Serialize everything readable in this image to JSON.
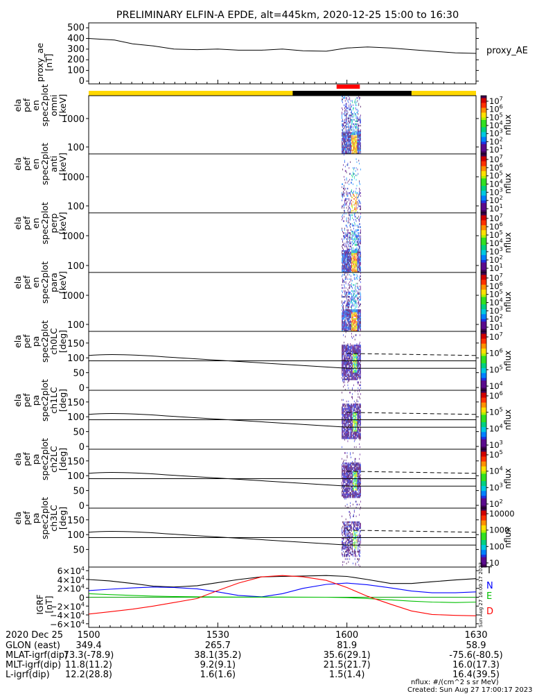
{
  "title": "PRELIMINARY ELFIN-A EPDE, alt=445km, 2020-12-25 15:00 to 16:30",
  "chart_data": [
    {
      "type": "line",
      "panel": "proxy_ae",
      "ylabel": [
        "proxy_ae",
        "[nT]"
      ],
      "yticks": [
        "500",
        "400",
        "300",
        "200",
        "100",
        "0"
      ],
      "yticks_values": [
        500,
        400,
        300,
        200,
        100,
        0
      ],
      "ylim": [
        0,
        520
      ],
      "legend": "proxy_AE",
      "series": [
        {
          "name": "proxy_AE",
          "x": [
            15.0,
            15.1,
            15.17,
            15.25,
            15.33,
            15.42,
            15.5,
            15.58,
            15.67,
            15.75,
            15.83,
            15.92,
            16.0,
            16.08,
            16.17,
            16.25,
            16.33,
            16.42,
            16.5
          ],
          "values": [
            400,
            385,
            350,
            330,
            300,
            295,
            300,
            290,
            290,
            300,
            285,
            280,
            310,
            320,
            310,
            295,
            280,
            265,
            260
          ]
        }
      ]
    },
    {
      "type": "heatmap",
      "panel": "spec2plot omni",
      "ylabel": [
        "ela",
        "pef",
        "en",
        "spec2plot",
        "omni",
        "[keV]"
      ],
      "yticks": [
        "1000",
        "100"
      ],
      "colorbar": {
        "label": "nflux",
        "ticks": [
          "10",
          "10",
          "10",
          "10",
          "10",
          "10",
          "10"
        ],
        "exponents": [
          "7",
          "6",
          "5",
          "4",
          "3",
          "2",
          "1"
        ]
      },
      "time_range": [
        "15:58",
        "16:07"
      ]
    },
    {
      "type": "heatmap",
      "panel": "spec2plot anti",
      "ylabel": [
        "ela",
        "pef",
        "en",
        "spec2plot",
        "anti",
        "[keV]"
      ],
      "yticks": [
        "1000",
        "100"
      ],
      "colorbar": {
        "label": "nflux",
        "ticks": [
          "10",
          "10",
          "10",
          "10",
          "10",
          "10",
          "10"
        ],
        "exponents": [
          "7",
          "6",
          "5",
          "4",
          "3",
          "2",
          "1"
        ]
      },
      "time_range": [
        "15:58",
        "16:07"
      ]
    },
    {
      "type": "heatmap",
      "panel": "spec2plot perp",
      "ylabel": [
        "ela",
        "pef",
        "en",
        "spec2plot",
        "perp",
        "[keV]"
      ],
      "yticks": [
        "1000",
        "100"
      ],
      "colorbar": {
        "label": "nflux",
        "ticks": [
          "10",
          "10",
          "10",
          "10",
          "10",
          "10",
          "10"
        ],
        "exponents": [
          "7",
          "6",
          "5",
          "4",
          "3",
          "2",
          "1"
        ]
      },
      "time_range": [
        "15:58",
        "16:07"
      ]
    },
    {
      "type": "heatmap",
      "panel": "spec2plot para",
      "ylabel": [
        "ela",
        "pef",
        "en",
        "spec2plot",
        "para",
        "[keV]"
      ],
      "yticks": [
        "1000",
        "100"
      ],
      "colorbar": {
        "label": "nflux",
        "ticks": [
          "10",
          "10",
          "10",
          "10",
          "10",
          "10",
          "10"
        ],
        "exponents": [
          "7",
          "6",
          "5",
          "4",
          "3",
          "2",
          "1"
        ]
      },
      "time_range": [
        "15:58",
        "16:07"
      ]
    },
    {
      "type": "heatmap",
      "panel": "spec2plot ch0LC",
      "ylabel": [
        "ela",
        "pef",
        "pa",
        "spec2plot",
        "ch0LC",
        "[deg]"
      ],
      "yticks": [
        "150",
        "100",
        "50",
        "0"
      ],
      "yticks_values": [
        150,
        100,
        50,
        0
      ],
      "ylim": [
        0,
        180
      ],
      "colorbar": {
        "label": "nflux",
        "ticks": [
          "10",
          "10",
          "10",
          "10"
        ],
        "exponents": [
          "7",
          "6",
          "5",
          "4"
        ]
      },
      "lines": {
        "solid_90": 90,
        "lc_start": 115,
        "lc_end": 65,
        "alc_start": 108,
        "alc_end": 115
      },
      "time_range": [
        "15:58",
        "16:07"
      ]
    },
    {
      "type": "heatmap",
      "panel": "spec2plot ch1LC",
      "ylabel": [
        "ela",
        "pef",
        "pa",
        "spec2plot",
        "ch1LC",
        "[deg]"
      ],
      "yticks": [
        "150",
        "100",
        "50",
        "0"
      ],
      "yticks_values": [
        150,
        100,
        50,
        0
      ],
      "ylim": [
        0,
        180
      ],
      "colorbar": {
        "label": "nflux",
        "ticks": [
          "10",
          "10",
          "10",
          "10"
        ],
        "exponents": [
          "6",
          "5",
          "4",
          "3"
        ]
      },
      "lines": {
        "solid_90": 90,
        "lc_start": 115,
        "lc_end": 65,
        "alc_start": 108,
        "alc_end": 115
      },
      "time_range": [
        "15:58",
        "16:07"
      ]
    },
    {
      "type": "heatmap",
      "panel": "spec2plot ch2LC",
      "ylabel": [
        "ela",
        "pef",
        "pa",
        "spec2plot",
        "ch2LC",
        "[deg]"
      ],
      "yticks": [
        "150",
        "100",
        "50",
        "0"
      ],
      "yticks_values": [
        150,
        100,
        50,
        0
      ],
      "ylim": [
        0,
        180
      ],
      "colorbar": {
        "label": "nflux",
        "ticks": [
          "10",
          "10",
          "10",
          "10"
        ],
        "exponents": [
          "5",
          "4",
          "3",
          "2"
        ]
      },
      "lines": {
        "solid_90": 90,
        "lc_start": 115,
        "lc_end": 65,
        "alc_start": 108,
        "alc_end": 115
      },
      "time_range": [
        "15:58",
        "16:07"
      ]
    },
    {
      "type": "heatmap",
      "panel": "spec2plot ch3LC",
      "ylabel": [
        "ela",
        "pef",
        "pa",
        "spec2plot",
        "ch3LC",
        "[deg]"
      ],
      "yticks": [
        "150",
        "100",
        "50"
      ],
      "yticks_values": [
        150,
        100,
        50
      ],
      "ylim": [
        0,
        180
      ],
      "colorbar": {
        "label": "nflux",
        "ticks": [
          "10000",
          "1000",
          "100",
          "10"
        ]
      },
      "lines": {
        "solid_90": 90,
        "lc_start": 115,
        "lc_end": 65,
        "alc_start": 108,
        "alc_end": 115
      },
      "time_range": [
        "15:58",
        "16:07"
      ]
    },
    {
      "type": "line",
      "panel": "IGRF",
      "ylabel": [
        "IGRF",
        "[nT]"
      ],
      "yticks": [
        "6×10",
        "4×10",
        "2×10",
        "0",
        "−2×10",
        "−4×10",
        "−6×10"
      ],
      "ytick_exponent": "4",
      "yticks_values": [
        60000,
        40000,
        20000,
        0,
        -20000,
        -40000,
        -60000
      ],
      "ylim": [
        -65000,
        65000
      ],
      "legend": [
        "T",
        "N",
        "E",
        "D"
      ],
      "series": [
        {
          "name": "T",
          "color": "#000000",
          "x": [
            15.0,
            15.08,
            15.17,
            15.25,
            15.33,
            15.42,
            15.5,
            15.58,
            15.67,
            15.75,
            15.83,
            15.92,
            16.0,
            16.08,
            16.17,
            16.25,
            16.33,
            16.42,
            16.5
          ],
          "values": [
            40000,
            37000,
            31000,
            25000,
            23000,
            26000,
            33000,
            40000,
            46000,
            47000,
            48000,
            49000,
            47000,
            40000,
            31000,
            31000,
            35000,
            39000,
            42000
          ]
        },
        {
          "name": "N",
          "color": "#0000ff",
          "x": [
            15.0,
            15.08,
            15.17,
            15.25,
            15.33,
            15.42,
            15.5,
            15.58,
            15.67,
            15.75,
            15.83,
            15.92,
            16.0,
            16.08,
            16.17,
            16.25,
            16.33,
            16.42,
            16.5
          ],
          "values": [
            15000,
            18000,
            21000,
            23000,
            22000,
            19000,
            12000,
            4000,
            1000,
            8000,
            20000,
            29000,
            32000,
            28000,
            21000,
            14000,
            10000,
            10000,
            12000
          ]
        },
        {
          "name": "E",
          "color": "#00c000",
          "x": [
            15.0,
            15.08,
            15.17,
            15.25,
            15.33,
            15.42,
            15.5,
            15.58,
            15.67,
            15.75,
            15.83,
            15.92,
            16.0,
            16.08,
            16.17,
            16.25,
            16.33,
            16.42,
            16.5
          ],
          "values": [
            8000,
            6000,
            4000,
            2500,
            1500,
            1000,
            500,
            300,
            300,
            300,
            200,
            0,
            -1000,
            -3000,
            -6000,
            -9000,
            -11000,
            -12000,
            -11000
          ]
        },
        {
          "name": "D",
          "color": "#ff0000",
          "x": [
            15.0,
            15.08,
            15.17,
            15.25,
            15.33,
            15.42,
            15.5,
            15.58,
            15.67,
            15.75,
            15.83,
            15.92,
            16.0,
            16.08,
            16.17,
            16.25,
            16.33,
            16.42,
            16.5
          ],
          "values": [
            -38000,
            -33000,
            -27000,
            -20000,
            -12000,
            -3000,
            15000,
            32000,
            46000,
            49000,
            46000,
            38000,
            22000,
            2000,
            -16000,
            -31000,
            -39000,
            -41000,
            -42000
          ]
        }
      ]
    }
  ],
  "footer": {
    "rows": [
      {
        "label": "2020 Dec 25",
        "values": [
          "1500",
          "1530",
          "1600",
          "1630"
        ]
      },
      {
        "label": "GLON (east)",
        "values": [
          "349.4",
          "265.7",
          "81.9",
          "58.9"
        ]
      },
      {
        "label": "MLAT-igrf(dip)",
        "values": [
          "73.3(-78.9)",
          "38.1(35.2)",
          "35.6(29.1)",
          "-75.6(-80.5)"
        ]
      },
      {
        "label": "MLT-igrf(dip)",
        "values": [
          "11.8(11.2)",
          "9.2(9.1)",
          "21.5(21.7)",
          "16.0(17.3)"
        ]
      },
      {
        "label": "L-igrf(dip)",
        "values": [
          "12.2(28.8)",
          "1.6(1.6)",
          "1.5(1.4)",
          "16.4(39.5)"
        ]
      }
    ],
    "units_note": "nflux: #/(cm^2 s sr MeV)",
    "created": "Created: Sun Aug 27 17:00:17 2023",
    "side_stamp": "Sun Aug 27 16:00:17 2023"
  },
  "bars": {
    "science_zone": {
      "start": 15.96,
      "end": 16.05,
      "color": "#ff0000"
    },
    "shadow": {
      "start": 15.79,
      "end": 16.25,
      "color": "#000000"
    },
    "sunlit_color": "#ffd800"
  }
}
